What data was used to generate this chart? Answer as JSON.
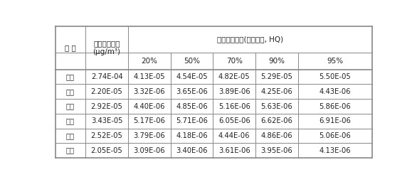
{
  "col_headers_row1": [
    "지 역",
    "예측대기오염\n(μg/m³)",
    "비발암위해도(유해지수, HQ)"
  ],
  "col_headers_row2": [
    "",
    "",
    "20%",
    "50%",
    "70%",
    "90%",
    "95%"
  ],
  "rows": [
    [
      "울산",
      "2.74E-04",
      "4.13E-05",
      "4.54E-05",
      "4.82E-05",
      "5.29E-05",
      "5.50E-05"
    ],
    [
      "경기",
      "2.20E-05",
      "3.32E-06",
      "3.65E-06",
      "3.89E-06",
      "4.25E-06",
      "4.43E-06"
    ],
    [
      "충북",
      "2.92E-05",
      "4.40E-06",
      "4.85E-06",
      "5.16E-06",
      "5.63E-06",
      "5.86E-06"
    ],
    [
      "충남",
      "3.43E-05",
      "5.17E-06",
      "5.71E-06",
      "6.05E-06",
      "6.62E-06",
      "6.91E-06"
    ],
    [
      "전북",
      "2.52E-05",
      "3.79E-06",
      "4.18E-06",
      "4.44E-06",
      "4.86E-06",
      "5.06E-06"
    ],
    [
      "경북",
      "2.05E-05",
      "3.09E-06",
      "3.40E-06",
      "3.61E-06",
      "3.95E-06",
      "4.13E-06"
    ]
  ],
  "bg_color": "#ffffff",
  "line_color": "#888888",
  "font_size": 7.5
}
